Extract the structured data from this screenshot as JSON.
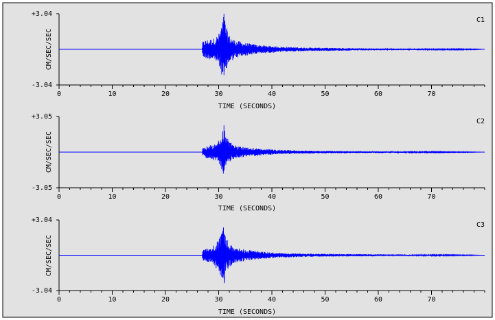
{
  "chart_data": [
    {
      "type": "line",
      "title": "C1",
      "xlabel": "TIME (SECONDS)",
      "ylabel": "CM/SEC/SEC",
      "xlim": [
        0,
        80
      ],
      "ylim": [
        -3.04,
        3.04
      ],
      "y_top_label": "+3.04",
      "y_bottom_label": "-3.04",
      "x_major_ticks": [
        0,
        10,
        20,
        30,
        40,
        50,
        60,
        70
      ],
      "x_minor_step": 2,
      "series": [
        {
          "color": "#0000ff",
          "envelope": [
            [
              0,
              0.0
            ],
            [
              26.9,
              0.0
            ],
            [
              27,
              0.7
            ],
            [
              28,
              0.85
            ],
            [
              29,
              0.9
            ],
            [
              30,
              1.3
            ],
            [
              30.6,
              2.2
            ],
            [
              31,
              3.04
            ],
            [
              31.4,
              2.0
            ],
            [
              32,
              1.2
            ],
            [
              33,
              0.8
            ],
            [
              35,
              0.55
            ],
            [
              38,
              0.35
            ],
            [
              42,
              0.22
            ],
            [
              46,
              0.16
            ],
            [
              52,
              0.12
            ],
            [
              60,
              0.08
            ],
            [
              70,
              0.05
            ],
            [
              78,
              0.03
            ],
            [
              80,
              0.0
            ]
          ],
          "peak": {
            "x": 31.0,
            "y": 3.04
          },
          "trough": {
            "x": 31.0,
            "y": -2.2
          }
        }
      ]
    },
    {
      "type": "line",
      "title": "C2",
      "xlabel": "TIME (SECONDS)",
      "ylabel": "CM/SEC/SEC",
      "xlim": [
        0,
        80
      ],
      "ylim": [
        -3.05,
        3.05
      ],
      "y_top_label": "+3.05",
      "y_bottom_label": "-3.05",
      "x_major_ticks": [
        0,
        10,
        20,
        30,
        40,
        50,
        60,
        70
      ],
      "x_minor_step": 2,
      "series": [
        {
          "color": "#0000ff",
          "envelope": [
            [
              0,
              0.0
            ],
            [
              26.9,
              0.0
            ],
            [
              27,
              0.4
            ],
            [
              28,
              0.55
            ],
            [
              29,
              0.7
            ],
            [
              30,
              1.0
            ],
            [
              30.6,
              1.5
            ],
            [
              31,
              2.3
            ],
            [
              31.4,
              1.4
            ],
            [
              32,
              0.9
            ],
            [
              33,
              0.6
            ],
            [
              35,
              0.4
            ],
            [
              38,
              0.28
            ],
            [
              42,
              0.18
            ],
            [
              46,
              0.13
            ],
            [
              52,
              0.1
            ],
            [
              60,
              0.07
            ],
            [
              70,
              0.04
            ],
            [
              78,
              0.02
            ],
            [
              80,
              0.0
            ]
          ],
          "peak": {
            "x": 31.0,
            "y": 2.3
          },
          "trough": {
            "x": 31.0,
            "y": -1.6
          }
        }
      ]
    },
    {
      "type": "line",
      "title": "C3",
      "xlabel": "TIME (SECONDS)",
      "ylabel": "CM/SEC/SEC",
      "xlim": [
        0,
        80
      ],
      "ylim": [
        -3.04,
        3.04
      ],
      "y_top_label": "+3.04",
      "y_bottom_label": "-3.04",
      "x_major_ticks": [
        0,
        10,
        20,
        30,
        40,
        50,
        60,
        70
      ],
      "x_minor_step": 2,
      "series": [
        {
          "color": "#0000ff",
          "envelope": [
            [
              0,
              0.0
            ],
            [
              26.9,
              0.0
            ],
            [
              27,
              0.5
            ],
            [
              28,
              0.65
            ],
            [
              29,
              0.8
            ],
            [
              30,
              1.4
            ],
            [
              30.5,
              2.0
            ],
            [
              30.9,
              2.4
            ],
            [
              31.3,
              1.6
            ],
            [
              32,
              1.0
            ],
            [
              33,
              0.7
            ],
            [
              35,
              0.5
            ],
            [
              38,
              0.32
            ],
            [
              42,
              0.2
            ],
            [
              46,
              0.15
            ],
            [
              52,
              0.11
            ],
            [
              60,
              0.08
            ],
            [
              70,
              0.05
            ],
            [
              78,
              0.02
            ],
            [
              80,
              0.0
            ]
          ],
          "peak": {
            "x": 30.9,
            "y": 2.4
          },
          "trough": {
            "x": 31.1,
            "y": -2.4
          }
        }
      ]
    }
  ]
}
